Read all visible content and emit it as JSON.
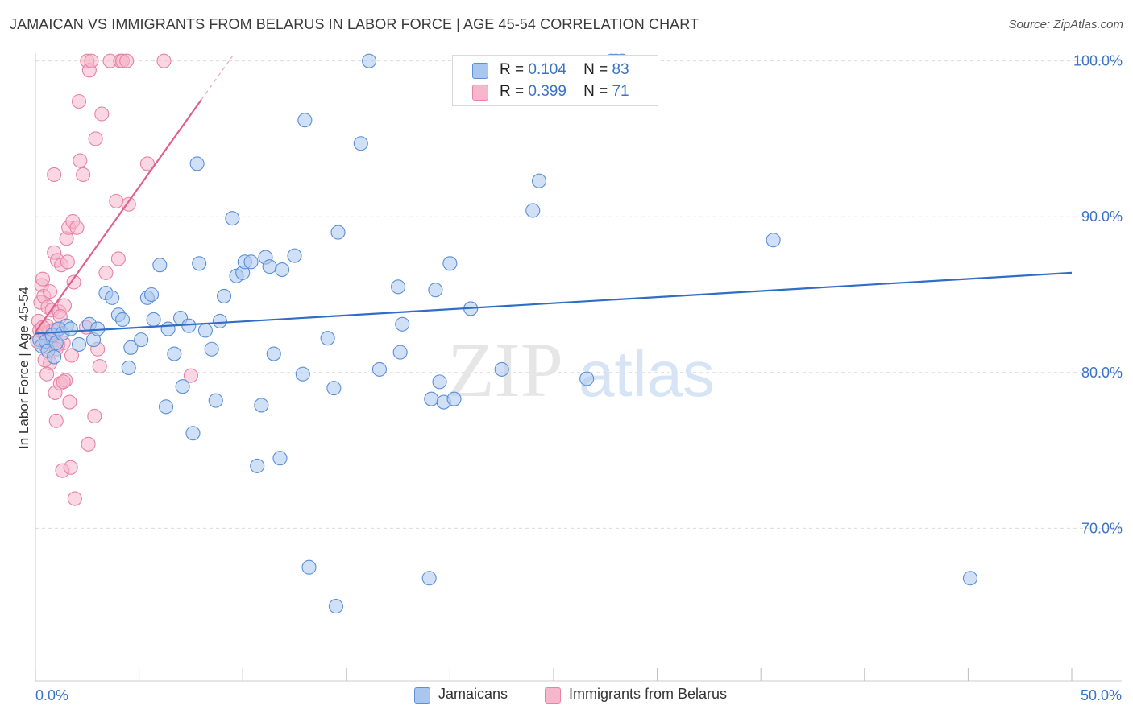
{
  "header": {
    "title": "JAMAICAN VS IMMIGRANTS FROM BELARUS IN LABOR FORCE | AGE 45-54 CORRELATION CHART",
    "source": "Source: ZipAtlas.com"
  },
  "legend": {
    "r_label": "R =",
    "n_label": "N =",
    "series": [
      {
        "name": "Jamaicans",
        "r": "0.104",
        "n": "83",
        "color": "#a9c6ef",
        "edge": "#5b8fd6",
        "line": "#2f6dc6"
      },
      {
        "name": "Immigrants from Belarus",
        "r": "0.399",
        "n": "71",
        "color": "#f6b6cb",
        "edge": "#e783a5",
        "line": "#e0608e"
      }
    ]
  },
  "watermark": {
    "zip": "ZIP",
    "atlas": "atlas"
  },
  "chart_data": {
    "type": "scatter",
    "title": "JAMAICAN VS IMMIGRANTS FROM BELARUS IN LABOR FORCE | AGE 45-54 CORRELATION CHART",
    "xlabel": "",
    "ylabel": "In Labor Force | Age 45-54",
    "xlim": [
      0,
      50
    ],
    "ylim": [
      60.2,
      100.5
    ],
    "x_ticks": [
      "0.0%",
      "50.0%"
    ],
    "y_ticks": [
      {
        "value": 70,
        "label": "70.0%"
      },
      {
        "value": 80,
        "label": "80.0%"
      },
      {
        "value": 90,
        "label": "90.0%"
      },
      {
        "value": 100,
        "label": "100.0%"
      }
    ],
    "grid": true,
    "series": [
      {
        "name": "Jamaicans",
        "trend": {
          "x0": 0,
          "y0": 82.5,
          "x1": 50,
          "y1": 86.4
        },
        "points": [
          [
            0.2,
            82.1
          ],
          [
            0.3,
            81.7
          ],
          [
            0.5,
            82.0
          ],
          [
            0.6,
            81.4
          ],
          [
            0.8,
            82.4
          ],
          [
            0.9,
            81.0
          ],
          [
            1.0,
            81.9
          ],
          [
            1.1,
            82.8
          ],
          [
            1.3,
            82.5
          ],
          [
            1.5,
            83.0
          ],
          [
            1.7,
            82.8
          ],
          [
            2.1,
            81.8
          ],
          [
            2.6,
            83.1
          ],
          [
            2.8,
            82.1
          ],
          [
            3.0,
            82.8
          ],
          [
            3.4,
            85.1
          ],
          [
            3.7,
            84.8
          ],
          [
            4.0,
            83.7
          ],
          [
            4.2,
            83.4
          ],
          [
            4.5,
            80.3
          ],
          [
            4.6,
            81.6
          ],
          [
            5.1,
            82.1
          ],
          [
            5.4,
            84.8
          ],
          [
            5.6,
            85.0
          ],
          [
            5.7,
            83.4
          ],
          [
            6.0,
            86.9
          ],
          [
            6.3,
            77.8
          ],
          [
            6.4,
            82.8
          ],
          [
            6.7,
            81.2
          ],
          [
            7.0,
            83.5
          ],
          [
            7.1,
            79.1
          ],
          [
            7.4,
            83.0
          ],
          [
            7.6,
            76.1
          ],
          [
            7.8,
            93.4
          ],
          [
            7.9,
            87.0
          ],
          [
            8.2,
            82.7
          ],
          [
            8.5,
            81.5
          ],
          [
            8.7,
            78.2
          ],
          [
            8.9,
            83.3
          ],
          [
            9.1,
            84.9
          ],
          [
            9.5,
            89.9
          ],
          [
            9.7,
            86.2
          ],
          [
            10.0,
            86.4
          ],
          [
            10.1,
            87.1
          ],
          [
            10.4,
            87.1
          ],
          [
            10.7,
            74.0
          ],
          [
            10.9,
            77.9
          ],
          [
            11.1,
            87.4
          ],
          [
            11.3,
            86.8
          ],
          [
            11.5,
            81.2
          ],
          [
            11.8,
            74.5
          ],
          [
            11.9,
            86.6
          ],
          [
            12.5,
            87.5
          ],
          [
            12.9,
            79.9
          ],
          [
            13.0,
            96.2
          ],
          [
            13.2,
            67.5
          ],
          [
            14.1,
            82.2
          ],
          [
            14.5,
            65.0
          ],
          [
            14.4,
            79.0
          ],
          [
            14.6,
            89.0
          ],
          [
            15.7,
            94.7
          ],
          [
            16.1,
            100.0
          ],
          [
            16.6,
            80.2
          ],
          [
            17.5,
            85.5
          ],
          [
            17.6,
            81.3
          ],
          [
            17.7,
            83.1
          ],
          [
            19.0,
            66.8
          ],
          [
            19.1,
            78.3
          ],
          [
            19.3,
            85.3
          ],
          [
            19.5,
            79.4
          ],
          [
            19.7,
            78.1
          ],
          [
            20.0,
            87.0
          ],
          [
            20.2,
            78.3
          ],
          [
            21.0,
            84.1
          ],
          [
            22.5,
            80.2
          ],
          [
            24.0,
            90.4
          ],
          [
            24.3,
            92.3
          ],
          [
            26.6,
            79.6
          ],
          [
            27.8,
            100.0
          ],
          [
            28.3,
            100.0
          ],
          [
            28.0,
            100.0
          ],
          [
            35.6,
            88.5
          ],
          [
            45.1,
            66.8
          ]
        ]
      },
      {
        "name": "Immigrants from Belarus",
        "trend": {
          "x0": 0,
          "y0": 82.6,
          "x1": 8.0,
          "y1": 97.5
        },
        "trend_ext": {
          "x0": 8.0,
          "y0": 97.5,
          "x1": 9.5,
          "y1": 100.3
        },
        "points": [
          [
            0.1,
            82.0
          ],
          [
            0.15,
            83.3
          ],
          [
            0.2,
            82.7
          ],
          [
            0.25,
            84.5
          ],
          [
            0.3,
            85.6
          ],
          [
            0.35,
            86.0
          ],
          [
            0.4,
            84.9
          ],
          [
            0.45,
            82.5
          ],
          [
            0.5,
            81.7
          ],
          [
            0.55,
            83.0
          ],
          [
            0.6,
            84.2
          ],
          [
            0.65,
            82.6
          ],
          [
            0.7,
            80.6
          ],
          [
            0.75,
            82.1
          ],
          [
            0.8,
            84.0
          ],
          [
            0.85,
            82.7
          ],
          [
            0.9,
            87.7
          ],
          [
            0.95,
            78.7
          ],
          [
            1.0,
            76.9
          ],
          [
            1.05,
            87.2
          ],
          [
            1.1,
            81.8
          ],
          [
            1.15,
            83.9
          ],
          [
            1.2,
            79.3
          ],
          [
            1.25,
            86.9
          ],
          [
            1.3,
            73.7
          ],
          [
            1.35,
            81.9
          ],
          [
            1.4,
            84.3
          ],
          [
            1.45,
            79.5
          ],
          [
            1.5,
            88.6
          ],
          [
            1.55,
            87.1
          ],
          [
            1.6,
            89.3
          ],
          [
            1.65,
            78.1
          ],
          [
            1.7,
            73.9
          ],
          [
            1.75,
            81.1
          ],
          [
            1.8,
            89.7
          ],
          [
            1.85,
            85.8
          ],
          [
            1.9,
            71.9
          ],
          [
            2.0,
            89.3
          ],
          [
            2.1,
            97.4
          ],
          [
            2.15,
            93.6
          ],
          [
            2.3,
            92.7
          ],
          [
            2.45,
            82.9
          ],
          [
            2.5,
            100.0
          ],
          [
            2.55,
            75.4
          ],
          [
            2.6,
            99.4
          ],
          [
            2.7,
            100.0
          ],
          [
            2.85,
            77.2
          ],
          [
            2.9,
            95.0
          ],
          [
            3.0,
            81.5
          ],
          [
            3.1,
            80.4
          ],
          [
            3.2,
            96.6
          ],
          [
            3.4,
            86.4
          ],
          [
            3.6,
            100.0
          ],
          [
            3.9,
            91.0
          ],
          [
            4.0,
            87.3
          ],
          [
            4.1,
            100.0
          ],
          [
            4.2,
            100.0
          ],
          [
            4.4,
            100.0
          ],
          [
            4.5,
            90.8
          ],
          [
            5.4,
            93.4
          ],
          [
            6.2,
            100.0
          ],
          [
            7.5,
            79.8
          ],
          [
            0.45,
            80.8
          ],
          [
            0.55,
            79.9
          ],
          [
            0.7,
            85.2
          ],
          [
            1.0,
            81.5
          ],
          [
            1.15,
            82.8
          ],
          [
            0.35,
            82.9
          ],
          [
            0.9,
            92.7
          ],
          [
            1.35,
            79.4
          ],
          [
            1.2,
            83.6
          ]
        ]
      }
    ]
  }
}
